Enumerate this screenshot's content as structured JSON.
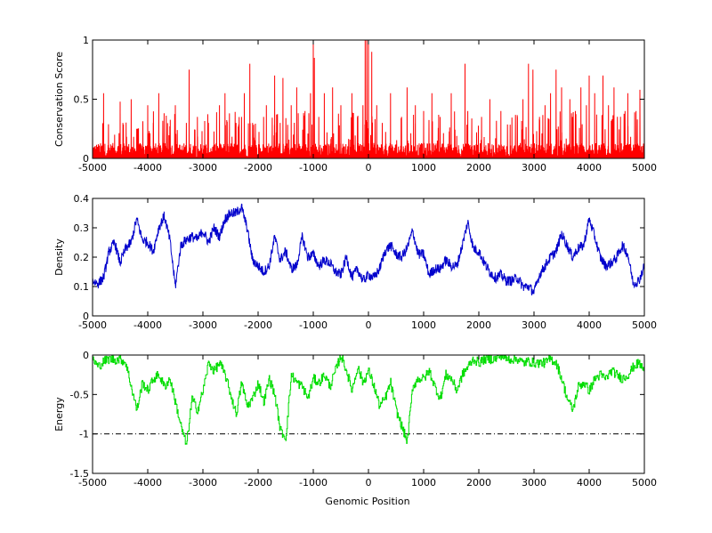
{
  "figure": {
    "xlabel": "Genomic Position"
  },
  "chart_data": [
    {
      "type": "line",
      "ylabel": "Conservation Score",
      "xlim": [
        -5000,
        5000
      ],
      "ylim": [
        0,
        1
      ],
      "xticks": [
        -5000,
        -4000,
        -3000,
        -2000,
        -1000,
        0,
        1000,
        2000,
        3000,
        4000,
        5000
      ],
      "yticks": [
        0,
        0.5,
        1
      ],
      "ytick_labels": [
        "0",
        "0.5",
        "1"
      ],
      "series": [
        {
          "color": "#ff0000",
          "style": "spiky",
          "x": [
            -5000,
            -4800,
            -4600,
            -4500,
            -4450,
            -4300,
            -4200,
            -4000,
            -3900,
            -3800,
            -3600,
            -3500,
            -3300,
            -3250,
            -3100,
            -2900,
            -2700,
            -2600,
            -2400,
            -2300,
            -2250,
            -2150,
            -2100,
            -1900,
            -1850,
            -1700,
            -1600,
            -1550,
            -1400,
            -1300,
            -1150,
            -1050,
            -1000,
            -980,
            -900,
            -800,
            -650,
            -500,
            -300,
            -200,
            -100,
            -60,
            -30,
            0,
            60,
            150,
            250,
            400,
            600,
            700,
            850,
            1000,
            1150,
            1300,
            1500,
            1750,
            1800,
            2050,
            2200,
            2400,
            2700,
            2800,
            2900,
            2980,
            3100,
            3200,
            3300,
            3400,
            3500,
            3650,
            3750,
            3850,
            3950,
            4000,
            4100,
            4250,
            4350,
            4450,
            4650,
            4700,
            4850,
            4920,
            5000
          ],
          "y": [
            0.25,
            0.55,
            0.2,
            0.48,
            0.3,
            0.5,
            0.25,
            0.45,
            0.3,
            0.55,
            0.2,
            0.45,
            0.3,
            0.75,
            0.35,
            0.3,
            0.45,
            0.55,
            0.3,
            0.35,
            0.55,
            0.8,
            0.3,
            0.35,
            0.45,
            0.7,
            0.3,
            0.68,
            0.45,
            0.6,
            0.4,
            0.55,
            0.98,
            0.85,
            0.35,
            0.55,
            0.6,
            0.45,
            0.55,
            0.35,
            0.45,
            1.0,
            1.0,
            1.0,
            0.9,
            0.45,
            0.3,
            0.55,
            0.35,
            0.6,
            0.45,
            0.4,
            0.55,
            0.35,
            0.55,
            0.8,
            0.4,
            0.35,
            0.5,
            0.4,
            0.35,
            0.5,
            0.8,
            0.75,
            0.35,
            0.45,
            0.55,
            0.75,
            0.6,
            0.5,
            0.4,
            0.6,
            0.45,
            0.7,
            0.55,
            0.7,
            0.45,
            0.6,
            0.4,
            0.55,
            0.4,
            0.58,
            0.35
          ]
        }
      ]
    },
    {
      "type": "line",
      "ylabel": "Density",
      "xlim": [
        -5000,
        5000
      ],
      "ylim": [
        0,
        0.4
      ],
      "xticks": [
        -5000,
        -4000,
        -3000,
        -2000,
        -1000,
        0,
        1000,
        2000,
        3000,
        4000,
        5000
      ],
      "yticks": [
        0,
        0.1,
        0.2,
        0.3,
        0.4
      ],
      "ytick_labels": [
        "0",
        "0.1",
        "0.2",
        "0.3",
        "0.4"
      ],
      "series": [
        {
          "color": "#0000cc",
          "style": "noisy",
          "x": [
            -5000,
            -4900,
            -4800,
            -4700,
            -4600,
            -4500,
            -4400,
            -4300,
            -4200,
            -4100,
            -4000,
            -3900,
            -3800,
            -3700,
            -3600,
            -3500,
            -3400,
            -3300,
            -3200,
            -3100,
            -3000,
            -2900,
            -2800,
            -2700,
            -2600,
            -2500,
            -2400,
            -2300,
            -2200,
            -2100,
            -2000,
            -1900,
            -1800,
            -1700,
            -1600,
            -1500,
            -1400,
            -1300,
            -1200,
            -1100,
            -1000,
            -900,
            -800,
            -700,
            -600,
            -500,
            -400,
            -300,
            -200,
            -100,
            0,
            100,
            200,
            300,
            400,
            500,
            600,
            700,
            800,
            900,
            1000,
            1100,
            1200,
            1300,
            1400,
            1500,
            1600,
            1700,
            1800,
            1900,
            2000,
            2100,
            2200,
            2300,
            2400,
            2500,
            2600,
            2700,
            2800,
            2900,
            3000,
            3100,
            3200,
            3300,
            3400,
            3500,
            3600,
            3700,
            3800,
            3900,
            4000,
            4100,
            4200,
            4300,
            4400,
            4500,
            4600,
            4700,
            4800,
            4900,
            5000
          ],
          "y": [
            0.12,
            0.11,
            0.13,
            0.22,
            0.25,
            0.18,
            0.23,
            0.25,
            0.33,
            0.26,
            0.25,
            0.22,
            0.3,
            0.34,
            0.26,
            0.1,
            0.24,
            0.26,
            0.27,
            0.26,
            0.29,
            0.25,
            0.3,
            0.27,
            0.33,
            0.35,
            0.35,
            0.37,
            0.3,
            0.19,
            0.17,
            0.15,
            0.17,
            0.27,
            0.19,
            0.22,
            0.16,
            0.17,
            0.27,
            0.2,
            0.21,
            0.17,
            0.19,
            0.18,
            0.15,
            0.14,
            0.2,
            0.13,
            0.16,
            0.12,
            0.14,
            0.13,
            0.16,
            0.22,
            0.24,
            0.21,
            0.2,
            0.23,
            0.29,
            0.21,
            0.21,
            0.14,
            0.16,
            0.16,
            0.19,
            0.17,
            0.17,
            0.24,
            0.32,
            0.23,
            0.22,
            0.18,
            0.15,
            0.13,
            0.14,
            0.12,
            0.12,
            0.13,
            0.1,
            0.1,
            0.08,
            0.14,
            0.17,
            0.2,
            0.22,
            0.28,
            0.24,
            0.2,
            0.23,
            0.24,
            0.33,
            0.27,
            0.2,
            0.17,
            0.18,
            0.2,
            0.24,
            0.21,
            0.11,
            0.12,
            0.17
          ]
        }
      ]
    },
    {
      "type": "line",
      "ylabel": "Energy",
      "xlabel": "Genomic Position",
      "xlim": [
        -5000,
        5000
      ],
      "ylim": [
        -1.5,
        0
      ],
      "xticks": [
        -5000,
        -4000,
        -3000,
        -2000,
        -1000,
        0,
        1000,
        2000,
        3000,
        4000,
        5000
      ],
      "yticks": [
        0,
        -0.5,
        -1,
        -1.5
      ],
      "ytick_labels": [
        "0",
        "-0.5",
        "-1",
        "-1.5"
      ],
      "reference_line": {
        "y": -1,
        "color": "#000000",
        "style": "dash-dot"
      },
      "series": [
        {
          "color": "#00dd00",
          "style": "step",
          "x": [
            -5000,
            -4900,
            -4800,
            -4700,
            -4600,
            -4500,
            -4400,
            -4300,
            -4200,
            -4100,
            -4000,
            -3900,
            -3800,
            -3700,
            -3600,
            -3500,
            -3400,
            -3300,
            -3200,
            -3100,
            -3000,
            -2900,
            -2800,
            -2700,
            -2600,
            -2500,
            -2400,
            -2300,
            -2200,
            -2100,
            -2000,
            -1900,
            -1800,
            -1700,
            -1600,
            -1500,
            -1400,
            -1300,
            -1200,
            -1100,
            -1000,
            -900,
            -800,
            -700,
            -600,
            -500,
            -400,
            -300,
            -200,
            -100,
            0,
            100,
            200,
            300,
            400,
            500,
            600,
            700,
            800,
            900,
            1000,
            1100,
            1200,
            1300,
            1400,
            1500,
            1600,
            1700,
            1800,
            1900,
            2000,
            2100,
            2200,
            2300,
            2400,
            2500,
            2600,
            2700,
            2800,
            2900,
            3000,
            3100,
            3200,
            3300,
            3400,
            3500,
            3600,
            3700,
            3800,
            3900,
            4000,
            4100,
            4200,
            4300,
            4400,
            4500,
            4600,
            4700,
            4800,
            4900,
            5000
          ],
          "y": [
            -0.05,
            -0.15,
            -0.08,
            -0.05,
            -0.06,
            -0.05,
            -0.1,
            -0.4,
            -0.7,
            -0.35,
            -0.45,
            -0.3,
            -0.25,
            -0.4,
            -0.3,
            -0.6,
            -0.9,
            -1.15,
            -0.55,
            -0.7,
            -0.45,
            -0.1,
            -0.2,
            -0.1,
            -0.25,
            -0.5,
            -0.75,
            -0.35,
            -0.65,
            -0.55,
            -0.35,
            -0.6,
            -0.3,
            -0.5,
            -0.95,
            -1.05,
            -0.25,
            -0.35,
            -0.4,
            -0.55,
            -0.3,
            -0.35,
            -0.25,
            -0.4,
            -0.2,
            0.0,
            -0.2,
            -0.45,
            -0.15,
            -0.35,
            -0.2,
            -0.4,
            -0.65,
            -0.55,
            -0.35,
            -0.7,
            -0.9,
            -1.1,
            -0.4,
            -0.3,
            -0.3,
            -0.2,
            -0.4,
            -0.55,
            -0.25,
            -0.3,
            -0.45,
            -0.25,
            -0.15,
            -0.05,
            -0.1,
            -0.05,
            -0.05,
            -0.05,
            -0.0,
            -0.05,
            -0.05,
            -0.05,
            -0.1,
            -0.08,
            -0.1,
            -0.1,
            -0.1,
            -0.05,
            -0.1,
            -0.3,
            -0.55,
            -0.7,
            -0.4,
            -0.35,
            -0.45,
            -0.3,
            -0.25,
            -0.3,
            -0.2,
            -0.25,
            -0.3,
            -0.25,
            -0.15,
            -0.1,
            -0.2
          ]
        }
      ]
    }
  ]
}
